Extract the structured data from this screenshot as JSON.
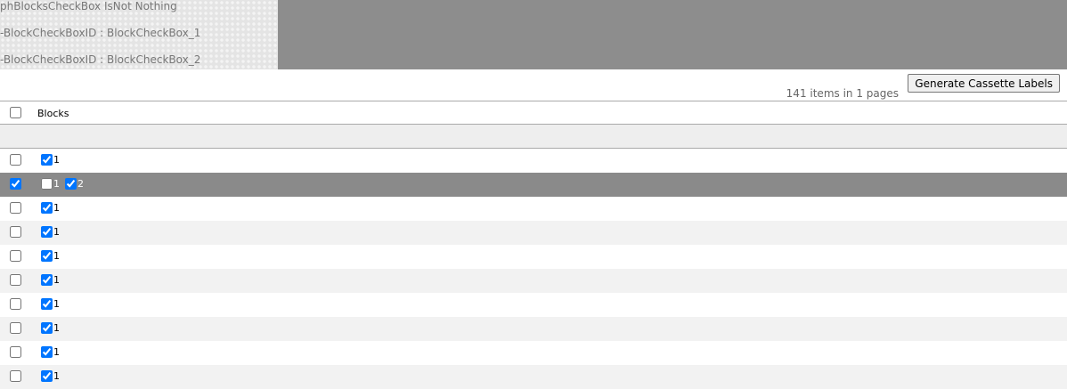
{
  "debug": [
    "phBlocksCheckBox IsNot Nothing",
    "-BlockCheckBoxID : BlockCheckBox_1",
    "-BlockCheckBoxID : BlockCheckBox_2"
  ],
  "toolbar": {
    "button": "Generate Cassette Labels",
    "pager": "141 items in 1 pages"
  },
  "table": {
    "header": "Blocks",
    "rows": [
      {
        "selected": false,
        "blocks": [
          {
            "label": "1",
            "checked": true
          }
        ]
      },
      {
        "selected": true,
        "blocks": [
          {
            "label": "1",
            "checked": false
          },
          {
            "label": "2",
            "checked": true
          }
        ]
      },
      {
        "selected": false,
        "blocks": [
          {
            "label": "1",
            "checked": true
          }
        ]
      },
      {
        "selected": false,
        "blocks": [
          {
            "label": "1",
            "checked": true
          }
        ]
      },
      {
        "selected": false,
        "blocks": [
          {
            "label": "1",
            "checked": true
          }
        ]
      },
      {
        "selected": false,
        "blocks": [
          {
            "label": "1",
            "checked": true
          }
        ]
      },
      {
        "selected": false,
        "blocks": [
          {
            "label": "1",
            "checked": true
          }
        ]
      },
      {
        "selected": false,
        "blocks": [
          {
            "label": "1",
            "checked": true
          }
        ]
      },
      {
        "selected": false,
        "blocks": [
          {
            "label": "1",
            "checked": true
          }
        ]
      },
      {
        "selected": false,
        "blocks": [
          {
            "label": "1",
            "checked": true
          }
        ]
      }
    ]
  }
}
